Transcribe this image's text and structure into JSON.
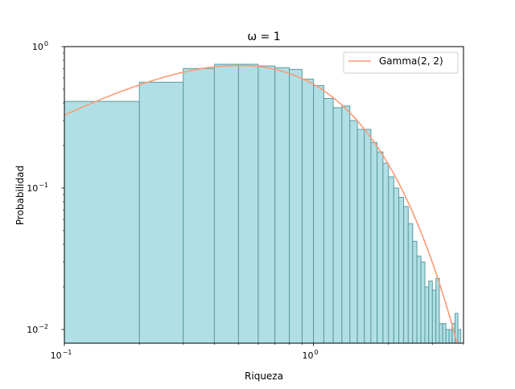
{
  "chart_data": {
    "type": "bar",
    "title": "ω = 1",
    "xlabel": "Riqueza",
    "ylabel": "Probabilidad",
    "x_scale": "log",
    "y_scale": "log",
    "xlim": [
      0.1,
      4.0
    ],
    "ylim": [
      0.008,
      1.0
    ],
    "x_ticks": [
      {
        "value": 0.1,
        "base": "10",
        "exp": "−1"
      },
      {
        "value": 1.0,
        "base": "10",
        "exp": "0"
      }
    ],
    "y_ticks": [
      {
        "value": 0.01,
        "base": "10",
        "exp": "−2"
      },
      {
        "value": 0.1,
        "base": "10",
        "exp": "−1"
      },
      {
        "value": 1.0,
        "base": "10",
        "exp": "0"
      }
    ],
    "grid": false,
    "legend_position": "top-right",
    "histogram": {
      "bin_width": 0.1,
      "bin_edges_start": 0.0,
      "values": [
        0.41,
        0.41,
        0.56,
        0.7,
        0.75,
        0.75,
        0.73,
        0.71,
        0.69,
        0.59,
        0.53,
        0.43,
        0.37,
        0.38,
        0.3,
        0.26,
        0.26,
        0.21,
        0.18,
        0.15,
        0.12,
        0.1,
        0.086,
        0.074,
        0.056,
        0.042,
        0.033,
        0.03,
        0.02,
        0.022,
        0.019,
        0.023,
        0.011,
        0.011,
        0.01,
        0.01,
        0.011,
        0.013,
        0.01
      ],
      "fill_color": "#b0dfe5",
      "edge_color": "#5b9aa0"
    },
    "series": [
      {
        "name": "Gamma(2, 2)",
        "type": "line",
        "color": "#ff9a73",
        "x_min": 0.1,
        "x_max": 4.0,
        "formula": "4 * x * exp(-2 * x)"
      }
    ]
  }
}
